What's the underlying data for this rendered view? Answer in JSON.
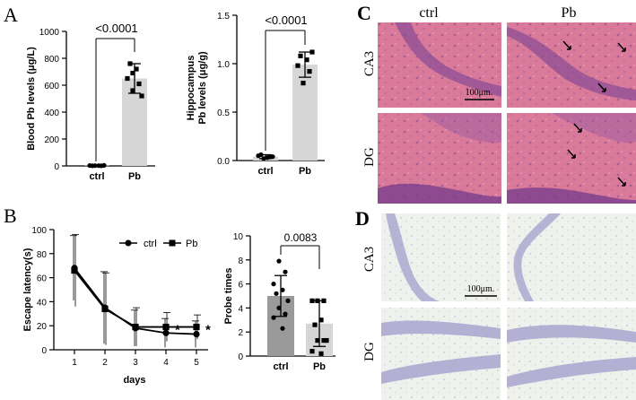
{
  "panels": {
    "A": "A",
    "B": "B",
    "C": "C",
    "D": "D"
  },
  "chart_data": [
    {
      "id": "A1",
      "type": "bar",
      "categories": [
        "ctrl",
        "Pb"
      ],
      "values": [
        2,
        650
      ],
      "errors": [
        3,
        110
      ],
      "points": [
        [
          2,
          1,
          3,
          2,
          1,
          4
        ],
        [
          560,
          610,
          650,
          720,
          760,
          520,
          690
        ]
      ],
      "ylabel": "Blood Pb levels (μg/L)",
      "ylim": [
        0,
        1000
      ],
      "yticks": [
        0,
        200,
        400,
        600,
        800,
        1000
      ],
      "pvalue": "<0.0001"
    },
    {
      "id": "A2",
      "type": "bar",
      "categories": [
        "ctrl",
        "Pb"
      ],
      "values": [
        0.04,
        0.99
      ],
      "errors": [
        0.02,
        0.13
      ],
      "points": [
        [
          0.02,
          0.04,
          0.05,
          0.03,
          0.06,
          0.04
        ],
        [
          0.8,
          0.92,
          0.98,
          1.04,
          1.08,
          1.12
        ]
      ],
      "ylabel": "Hippocampus",
      "ylabel2": "Pb levels (μg/g)",
      "ylim": [
        0,
        1.5
      ],
      "yticks": [
        "0.0",
        "0.5",
        "1.0",
        "1.5"
      ],
      "pvalue": "<0.0001"
    },
    {
      "id": "B1",
      "type": "line",
      "x": [
        1,
        2,
        3,
        4,
        5
      ],
      "xticks": [
        "1",
        "2",
        "3",
        "4",
        "5"
      ],
      "xlabel": "days",
      "ylabel": "Escape latency(s)",
      "ylim": [
        0,
        100
      ],
      "yticks": [
        "0",
        "20",
        "40",
        "60",
        "80",
        "100"
      ],
      "series": [
        {
          "name": "ctrl",
          "values": [
            68,
            35,
            18,
            14,
            13
          ],
          "errors": [
            27,
            30,
            15,
            12,
            11
          ],
          "marker": "circle"
        },
        {
          "name": "Pb",
          "values": [
            66,
            34,
            19,
            19,
            19
          ],
          "errors": [
            30,
            30,
            16,
            12,
            10
          ],
          "marker": "square"
        }
      ],
      "stars": [
        {
          "x": 4,
          "text": "*"
        },
        {
          "x": 5,
          "text": "*"
        }
      ]
    },
    {
      "id": "B2",
      "type": "bar",
      "categories": [
        "ctrl",
        "Pb"
      ],
      "values": [
        5.0,
        2.7
      ],
      "errors": [
        1.7,
        1.9
      ],
      "points": [
        [
          7.9,
          7.0,
          6.0,
          5.5,
          5.2,
          4.6,
          4.0,
          3.5,
          3.2,
          2.3
        ],
        [
          4.6,
          4.6,
          4.6,
          3.0,
          2.6,
          1.3,
          1.3,
          1.3,
          0.4,
          0.2
        ]
      ],
      "ylabel": "Probe times",
      "ylim": [
        0,
        10
      ],
      "yticks": [
        "0",
        "2",
        "4",
        "6",
        "8",
        "10"
      ],
      "pvalue": "0.0083",
      "bar_colors": [
        "#9a9a9a",
        "#d6d6d6"
      ]
    }
  ],
  "histology": {
    "columns": [
      "ctrl",
      "Pb"
    ],
    "rows_C": [
      "CA3",
      "DG"
    ],
    "rows_D": [
      "CA3",
      "DG"
    ],
    "scale_bar": "100μm."
  }
}
